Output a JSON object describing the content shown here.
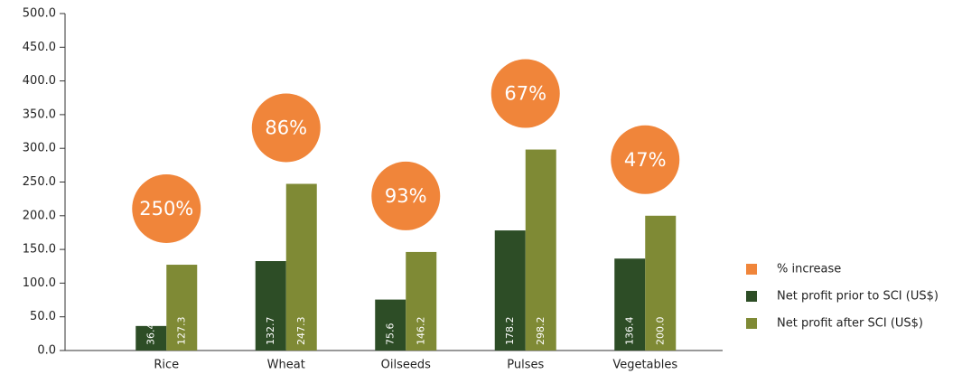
{
  "chart_data": {
    "type": "bar",
    "categories": [
      "Rice",
      "Wheat",
      "Oilseeds",
      "Pulses",
      "Vegetables"
    ],
    "series": [
      {
        "name": "% increase",
        "color": "#f0853a",
        "values": [
          250,
          86,
          93,
          67,
          47
        ],
        "value_labels": [
          "250%",
          "86%",
          "93%",
          "67%",
          "47%"
        ]
      },
      {
        "name": "Net profit prior to SCI (US$)",
        "color": "#2d4d26",
        "values": [
          36.4,
          132.7,
          75.6,
          178.2,
          136.4
        ]
      },
      {
        "name": "Net profit after SCI (US$)",
        "color": "#7f8a35",
        "values": [
          127.3,
          247.3,
          146.2,
          298.2,
          200.0
        ],
        "value_labels": [
          "127.3",
          "247.3",
          "146.2",
          "298.2",
          "200.0"
        ]
      }
    ],
    "ylim": [
      0,
      500
    ],
    "yticks": [
      {
        "value": 0,
        "label": "0.0"
      },
      {
        "value": 50,
        "label": "50.0"
      },
      {
        "value": 100,
        "label": "100.0"
      },
      {
        "value": 150,
        "label": "150.0"
      },
      {
        "value": 200,
        "label": "200.0"
      },
      {
        "value": 250,
        "label": "250.0"
      },
      {
        "value": 300,
        "label": "300.0"
      },
      {
        "value": 350,
        "label": "350.0"
      },
      {
        "value": 400,
        "label": "400.0"
      },
      {
        "value": 450,
        "label": "450.0"
      },
      {
        "value": 500,
        "label": "500.0"
      }
    ],
    "legend": "right"
  }
}
